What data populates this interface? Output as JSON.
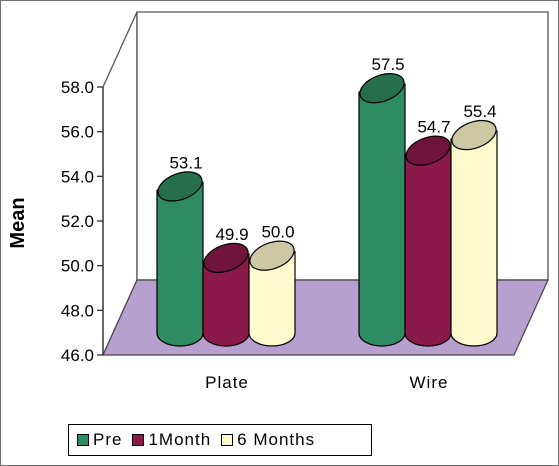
{
  "chart_data": {
    "type": "bar",
    "style": "3d-cylinder",
    "categories": [
      "Plate",
      "Wire"
    ],
    "series": [
      {
        "name": "Pre",
        "values": [
          53.1,
          57.5
        ],
        "color": "#2e8b63"
      },
      {
        "name": "1Month",
        "values": [
          49.9,
          54.7
        ],
        "color": "#8b1a4a"
      },
      {
        "name": "6 Months",
        "values": [
          50.0,
          55.4
        ],
        "color": "#fffacd"
      }
    ],
    "data_labels": [
      [
        "53.1",
        "57.5"
      ],
      [
        "49.9",
        "54.7"
      ],
      [
        "50.0",
        "55.4"
      ]
    ],
    "ylabel": "Mean",
    "xlabel": "",
    "title": "",
    "ylim": [
      46.0,
      58.0
    ],
    "yticks": [
      "46.0",
      "48.0",
      "50.0",
      "52.0",
      "54.0",
      "56.0",
      "58.0"
    ],
    "floor_color": "#b79fd0",
    "grid": false,
    "legend_position": "bottom"
  }
}
